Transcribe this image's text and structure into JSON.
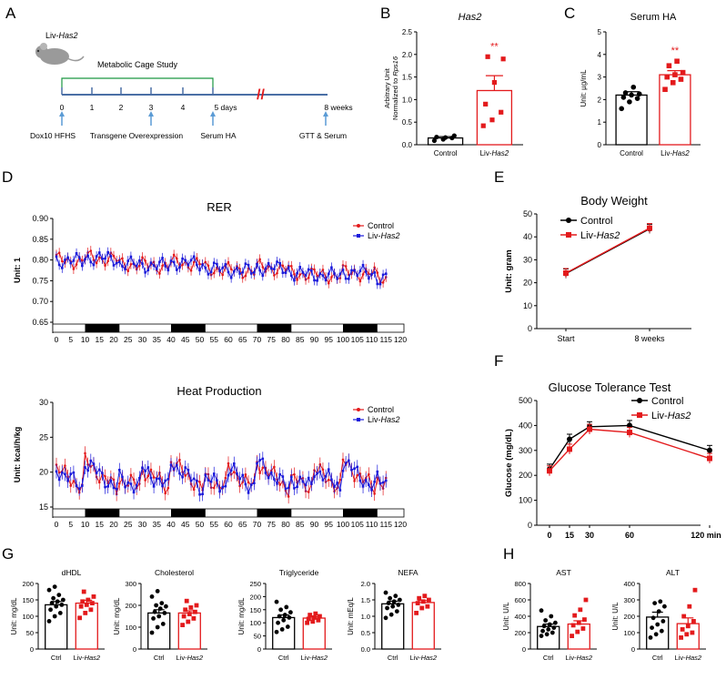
{
  "colors": {
    "control": "#000000",
    "liv": "#e31a1c",
    "rer_ctrl": "#e31a1c",
    "rer_liv": "#1a1adb",
    "star": "#e31a1c"
  },
  "panel_labels": [
    "A",
    "B",
    "C",
    "D",
    "E",
    "F",
    "G",
    "H"
  ],
  "chart_data": [
    {
      "panel": "A",
      "type": "timeline",
      "mouse_label_prefix": "Liv-",
      "mouse_label_gene": "Has2",
      "bracket_label": "Metabolic Cage Study",
      "ticks": [
        "0",
        "1",
        "2",
        "3",
        "4",
        "5 days",
        "8 weeks"
      ],
      "events": [
        "Dox10 HFHS",
        "Transgene Overexpression",
        "Serum HA",
        "GTT & Serum"
      ]
    },
    {
      "panel": "B",
      "type": "bar",
      "title": "Has2",
      "ylabel_line1": "Arbitrary Unit",
      "ylabel_line2_prefix": "Normalized to ",
      "ylabel_line2_gene": "Rps16",
      "categories": [
        "Control",
        "Liv-Has2"
      ],
      "means": [
        0.15,
        1.2
      ],
      "sem": [
        0.03,
        0.33
      ],
      "points": [
        [
          0.09,
          0.12,
          0.15,
          0.17,
          0.16,
          0.2
        ],
        [
          0.42,
          0.55,
          0.72,
          0.9,
          1.38,
          1.9,
          1.95
        ]
      ],
      "ylim": [
        0,
        2.5
      ],
      "yticks": [
        "0.0",
        "0.5",
        "1.0",
        "1.5",
        "2.0",
        "2.5"
      ],
      "significance": "**"
    },
    {
      "panel": "C",
      "type": "bar",
      "title": "Serum HA",
      "ylabel": "Unit: µg/mL",
      "categories": [
        "Control",
        "Liv-Has2"
      ],
      "means": [
        2.2,
        3.1
      ],
      "sem": [
        0.15,
        0.18
      ],
      "points": [
        [
          1.6,
          1.9,
          2.05,
          2.1,
          2.2,
          2.25,
          2.3,
          2.55
        ],
        [
          2.45,
          2.75,
          2.9,
          3.0,
          3.1,
          3.2,
          3.5,
          3.7
        ]
      ],
      "ylim": [
        0,
        5
      ],
      "yticks": [
        "0",
        "1",
        "2",
        "3",
        "4",
        "5"
      ],
      "significance": "**"
    },
    {
      "panel": "D1",
      "type": "line",
      "title": "RER",
      "ylabel": "Unit: 1",
      "series": [
        {
          "name": "Control",
          "color": "#e31a1c"
        },
        {
          "name": "Liv-Has2",
          "color": "#1a1adb"
        }
      ],
      "ylim": [
        0.65,
        0.9
      ],
      "yticks": [
        "0.65",
        "0.70",
        "0.75",
        "0.80",
        "0.85",
        "0.90"
      ],
      "xticks": [
        "0",
        "5",
        "10",
        "15",
        "20",
        "25",
        "30",
        "35",
        "40",
        "45",
        "50",
        "55",
        "60",
        "65",
        "70",
        "75",
        "80",
        "85",
        "90",
        "95",
        "100",
        "105",
        "110",
        "115",
        "120"
      ],
      "dark_periods": [
        [
          10,
          22
        ],
        [
          40,
          52
        ],
        [
          70,
          82
        ],
        [
          100,
          112
        ]
      ]
    },
    {
      "panel": "D2",
      "type": "line",
      "title": "Heat Production",
      "ylabel": "Unit: kcal/h/kg",
      "series": [
        {
          "name": "Control",
          "color": "#e31a1c"
        },
        {
          "name": "Liv-Has2",
          "color": "#1a1adb"
        }
      ],
      "ylim": [
        15,
        30
      ],
      "yticks": [
        "15",
        "20",
        "25",
        "30"
      ],
      "xticks": [
        "0",
        "5",
        "10",
        "15",
        "20",
        "25",
        "30",
        "35",
        "40",
        "45",
        "50",
        "55",
        "60",
        "65",
        "70",
        "75",
        "80",
        "85",
        "90",
        "95",
        "100",
        "105",
        "110",
        "115",
        "120"
      ],
      "dark_periods": [
        [
          10,
          22
        ],
        [
          40,
          52
        ],
        [
          70,
          82
        ],
        [
          100,
          112
        ]
      ]
    },
    {
      "panel": "E",
      "type": "line",
      "title": "Body Weight",
      "ylabel": "Unit: gram",
      "categories": [
        "Start",
        "8 weeks"
      ],
      "series": [
        {
          "name": "Control",
          "values": [
            24,
            43.5
          ]
        },
        {
          "name": "Liv-Has2",
          "values": [
            24.2,
            43.8
          ]
        }
      ],
      "ylim": [
        0,
        50
      ],
      "yticks": [
        "0",
        "10",
        "20",
        "30",
        "40",
        "50"
      ]
    },
    {
      "panel": "F",
      "type": "line",
      "title": "Glucose Tolerance Test",
      "ylabel": "Glucose (mg/dL)",
      "x": [
        0,
        15,
        30,
        60,
        120
      ],
      "series": [
        {
          "name": "Control",
          "values": [
            225,
            345,
            395,
            400,
            300
          ]
        },
        {
          "name": "Liv-Has2",
          "values": [
            218,
            305,
            385,
            372,
            268
          ]
        }
      ],
      "ylim": [
        0,
        500
      ],
      "yticks": [
        "0",
        "100",
        "200",
        "300",
        "400",
        "500"
      ],
      "xticks": [
        "0",
        "15",
        "30",
        "60",
        "120 min"
      ]
    },
    {
      "panel": "G",
      "type": "bar",
      "title": "dHDL",
      "ylabel": "Unit: mg/dL",
      "categories": [
        "Ctrl",
        "Liv-Has2"
      ],
      "means": [
        135,
        140
      ],
      "sem": [
        10,
        9
      ],
      "points": [
        [
          85,
          100,
          110,
          120,
          130,
          135,
          140,
          145,
          150,
          155,
          165,
          180,
          190
        ],
        [
          95,
          110,
          120,
          130,
          135,
          140,
          145,
          150,
          160,
          175
        ]
      ],
      "ylim": [
        0,
        200
      ],
      "yticks": [
        "0",
        "50",
        "100",
        "150",
        "200"
      ]
    },
    {
      "panel": "G",
      "type": "bar",
      "title": "Cholesterol",
      "ylabel": "Unit: mg/dL",
      "categories": [
        "Ctrl",
        "Liv-Has2"
      ],
      "means": [
        165,
        165
      ],
      "sem": [
        15,
        10
      ],
      "points": [
        [
          75,
          100,
          115,
          140,
          150,
          165,
          170,
          185,
          195,
          200,
          210,
          240,
          265
        ],
        [
          110,
          125,
          140,
          150,
          160,
          170,
          180,
          190,
          200,
          220
        ]
      ],
      "ylim": [
        0,
        300
      ],
      "yticks": [
        "0",
        "100",
        "200",
        "300"
      ]
    },
    {
      "panel": "G",
      "type": "bar",
      "title": "Triglyceride",
      "ylabel": "Unit: mg/dL",
      "categories": [
        "Ctrl",
        "Liv-Has2"
      ],
      "means": [
        120,
        118
      ],
      "sem": [
        10,
        5
      ],
      "points": [
        [
          65,
          75,
          85,
          100,
          110,
          120,
          125,
          130,
          140,
          150,
          160,
          180
        ],
        [
          100,
          105,
          110,
          115,
          120,
          125,
          130,
          135
        ]
      ],
      "ylim": [
        0,
        250
      ],
      "yticks": [
        "0",
        "50",
        "100",
        "150",
        "200",
        "250"
      ]
    },
    {
      "panel": "G",
      "type": "bar",
      "title": "NEFA",
      "ylabel": "Unit: mEq/L",
      "categories": [
        "Ctrl",
        "Liv-Has2"
      ],
      "means": [
        1.38,
        1.42
      ],
      "sem": [
        0.08,
        0.06
      ],
      "points": [
        [
          0.95,
          1.05,
          1.15,
          1.25,
          1.3,
          1.35,
          1.4,
          1.45,
          1.5,
          1.55,
          1.62,
          1.72
        ],
        [
          1.1,
          1.25,
          1.3,
          1.4,
          1.45,
          1.5,
          1.55,
          1.62
        ]
      ],
      "ylim": [
        0,
        2
      ],
      "yticks": [
        "0.0",
        "0.5",
        "1.0",
        "1.5",
        "2.0"
      ]
    },
    {
      "panel": "H",
      "type": "bar",
      "title": "AST",
      "ylabel": "Unit: U/L",
      "categories": [
        "Ctrl",
        "Liv-Has2"
      ],
      "means": [
        275,
        305
      ],
      "sem": [
        30,
        40
      ],
      "points": [
        [
          160,
          180,
          200,
          220,
          240,
          260,
          280,
          300,
          320,
          350,
          400,
          470
        ],
        [
          160,
          210,
          250,
          290,
          320,
          360,
          410,
          480,
          600
        ]
      ],
      "ylim": [
        0,
        800
      ],
      "yticks": [
        "0",
        "200",
        "400",
        "600",
        "800"
      ]
    },
    {
      "panel": "H",
      "type": "bar",
      "title": "ALT",
      "ylabel": "Unit: U/L",
      "categories": [
        "Ctrl",
        "Liv-Has2"
      ],
      "means": [
        195,
        155
      ],
      "sem": [
        30,
        35
      ],
      "points": [
        [
          70,
          90,
          110,
          130,
          150,
          170,
          190,
          230,
          260,
          280,
          290
        ],
        [
          70,
          90,
          100,
          120,
          140,
          170,
          200,
          260,
          360
        ]
      ],
      "ylim": [
        0,
        400
      ],
      "yticks": [
        "0",
        "100",
        "200",
        "300",
        "400"
      ]
    }
  ]
}
